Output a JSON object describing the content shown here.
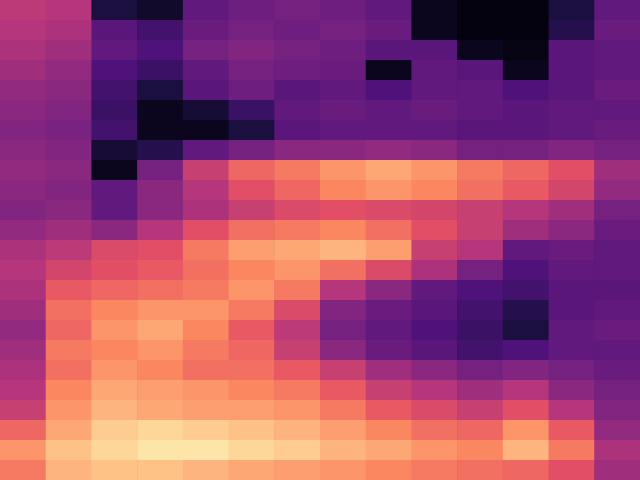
{
  "chart_data": {
    "type": "heatmap",
    "tick_labels": false,
    "color_range": [
      0,
      1
    ],
    "cells": [
      [
        0.52,
        0.5,
        0.12,
        0.08,
        0.3,
        0.33,
        0.35,
        0.33,
        0.3,
        0.05,
        0.02,
        0.02,
        0.12,
        0.3
      ],
      [
        0.5,
        0.48,
        0.28,
        0.22,
        0.32,
        0.35,
        0.33,
        0.35,
        0.32,
        0.05,
        0.02,
        0.02,
        0.15,
        0.32
      ],
      [
        0.48,
        0.45,
        0.3,
        0.25,
        0.35,
        0.38,
        0.35,
        0.33,
        0.28,
        0.28,
        0.05,
        0.03,
        0.28,
        0.3
      ],
      [
        0.45,
        0.42,
        0.25,
        0.2,
        0.3,
        0.35,
        0.33,
        0.32,
        0.05,
        0.3,
        0.28,
        0.05,
        0.28,
        0.3
      ],
      [
        0.42,
        0.4,
        0.22,
        0.12,
        0.28,
        0.33,
        0.28,
        0.3,
        0.25,
        0.3,
        0.3,
        0.25,
        0.28,
        0.32
      ],
      [
        0.4,
        0.38,
        0.2,
        0.05,
        0.1,
        0.2,
        0.3,
        0.32,
        0.3,
        0.32,
        0.3,
        0.28,
        0.3,
        0.3
      ],
      [
        0.38,
        0.36,
        0.22,
        0.05,
        0.05,
        0.12,
        0.28,
        0.3,
        0.3,
        0.3,
        0.28,
        0.28,
        0.3,
        0.32
      ],
      [
        0.4,
        0.38,
        0.1,
        0.15,
        0.3,
        0.35,
        0.4,
        0.4,
        0.42,
        0.4,
        0.35,
        0.35,
        0.38,
        0.35
      ],
      [
        0.42,
        0.4,
        0.05,
        0.35,
        0.55,
        0.68,
        0.72,
        0.78,
        0.82,
        0.78,
        0.72,
        0.68,
        0.62,
        0.45
      ],
      [
        0.4,
        0.38,
        0.3,
        0.4,
        0.5,
        0.62,
        0.68,
        0.75,
        0.78,
        0.75,
        0.7,
        0.65,
        0.58,
        0.42
      ],
      [
        0.38,
        0.4,
        0.3,
        0.4,
        0.48,
        0.55,
        0.6,
        0.62,
        0.6,
        0.58,
        0.55,
        0.5,
        0.45,
        0.35
      ],
      [
        0.42,
        0.45,
        0.4,
        0.5,
        0.62,
        0.7,
        0.72,
        0.75,
        0.7,
        0.62,
        0.55,
        0.45,
        0.4,
        0.32
      ],
      [
        0.48,
        0.52,
        0.6,
        0.62,
        0.72,
        0.8,
        0.82,
        0.85,
        0.8,
        0.55,
        0.5,
        0.3,
        0.32,
        0.3
      ],
      [
        0.5,
        0.58,
        0.62,
        0.65,
        0.7,
        0.75,
        0.78,
        0.7,
        0.6,
        0.48,
        0.35,
        0.25,
        0.3,
        0.3
      ],
      [
        0.48,
        0.65,
        0.68,
        0.7,
        0.72,
        0.78,
        0.72,
        0.5,
        0.4,
        0.3,
        0.25,
        0.22,
        0.28,
        0.28
      ],
      [
        0.45,
        0.7,
        0.75,
        0.78,
        0.78,
        0.72,
        0.6,
        0.38,
        0.32,
        0.28,
        0.22,
        0.15,
        0.28,
        0.3
      ],
      [
        0.42,
        0.68,
        0.78,
        0.82,
        0.75,
        0.65,
        0.52,
        0.35,
        0.3,
        0.25,
        0.2,
        0.12,
        0.3,
        0.32
      ],
      [
        0.45,
        0.72,
        0.75,
        0.78,
        0.72,
        0.68,
        0.55,
        0.4,
        0.32,
        0.28,
        0.22,
        0.25,
        0.3,
        0.3
      ],
      [
        0.48,
        0.7,
        0.78,
        0.75,
        0.7,
        0.7,
        0.65,
        0.55,
        0.45,
        0.4,
        0.35,
        0.38,
        0.35,
        0.32
      ],
      [
        0.5,
        0.75,
        0.82,
        0.8,
        0.78,
        0.75,
        0.72,
        0.65,
        0.55,
        0.5,
        0.45,
        0.5,
        0.4,
        0.35
      ],
      [
        0.55,
        0.78,
        0.85,
        0.82,
        0.8,
        0.8,
        0.78,
        0.72,
        0.65,
        0.6,
        0.55,
        0.62,
        0.5,
        0.38
      ],
      [
        0.68,
        0.82,
        0.9,
        0.92,
        0.9,
        0.88,
        0.85,
        0.8,
        0.75,
        0.7,
        0.68,
        0.78,
        0.65,
        0.42
      ],
      [
        0.78,
        0.88,
        0.92,
        0.95,
        0.95,
        0.92,
        0.9,
        0.85,
        0.82,
        0.78,
        0.75,
        0.85,
        0.72,
        0.48
      ],
      [
        0.72,
        0.85,
        0.88,
        0.88,
        0.85,
        0.82,
        0.8,
        0.78,
        0.75,
        0.72,
        0.7,
        0.68,
        0.62,
        0.45
      ]
    ]
  }
}
